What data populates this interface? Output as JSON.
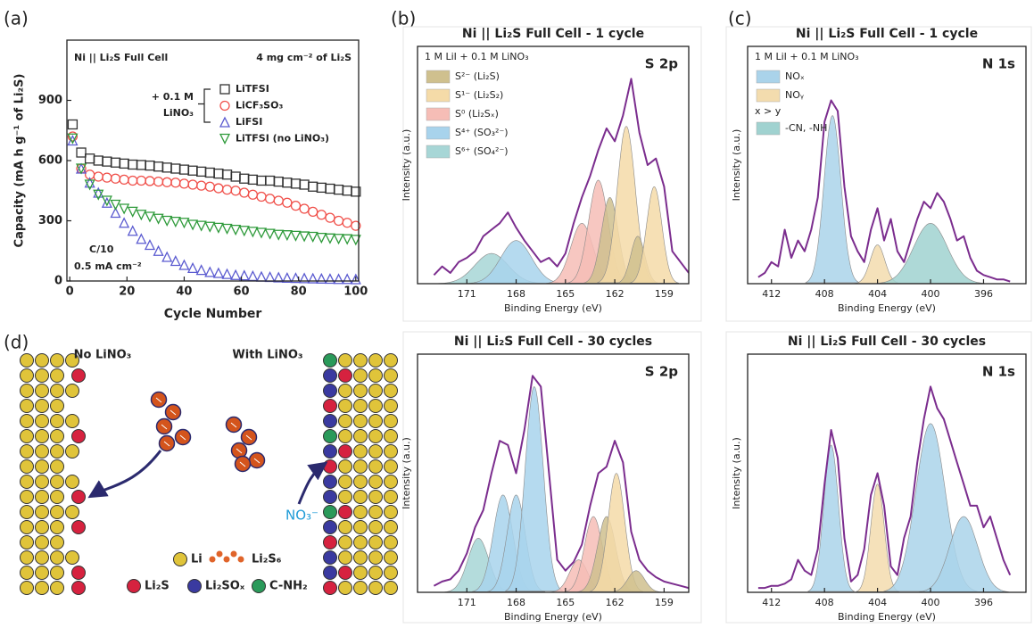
{
  "panel_labels": [
    "(a)",
    "(b)",
    "(c)",
    "(d)"
  ],
  "chart_data": [
    {
      "type": "scatter",
      "xlabel": "Cycle Number",
      "ylabel": "Capacity (mA h g⁻¹ of Li₂S)",
      "annotations": [
        "Ni || Li₂S Full Cell",
        "4 mg cm⁻² of Li₂S",
        "C/10",
        "0.5 mA cm⁻²"
      ],
      "legend_group": [
        "+ 0.1 M",
        "LiNO₃"
      ],
      "xlim": [
        -1,
        101
      ],
      "ylim": [
        0,
        1200
      ],
      "xticks": [
        0,
        20,
        40,
        60,
        80,
        100
      ],
      "yticks": [
        0,
        300,
        600,
        900
      ],
      "x": [
        1,
        4,
        7,
        10,
        13,
        16,
        19,
        22,
        25,
        28,
        31,
        34,
        37,
        40,
        43,
        46,
        49,
        52,
        55,
        58,
        61,
        64,
        67,
        70,
        73,
        76,
        79,
        82,
        85,
        88,
        91,
        94,
        97,
        100
      ],
      "series": [
        {
          "name": "LiTFSI",
          "color": "#333333",
          "marker": "square",
          "values": [
            780,
            640,
            610,
            600,
            595,
            590,
            585,
            580,
            578,
            575,
            570,
            565,
            560,
            555,
            550,
            545,
            540,
            535,
            530,
            520,
            510,
            505,
            500,
            500,
            495,
            490,
            485,
            480,
            470,
            465,
            460,
            455,
            450,
            445
          ]
        },
        {
          "name": "LiCF₃SO₃",
          "color": "#f0504a",
          "marker": "circle",
          "values": [
            720,
            560,
            530,
            520,
            515,
            510,
            505,
            500,
            500,
            498,
            495,
            492,
            490,
            485,
            480,
            475,
            470,
            462,
            455,
            450,
            440,
            430,
            420,
            410,
            400,
            390,
            375,
            360,
            345,
            330,
            315,
            300,
            290,
            275
          ]
        },
        {
          "name": "LiFSI",
          "color": "#5a5ad0",
          "marker": "triangle",
          "values": [
            700,
            560,
            490,
            440,
            390,
            340,
            290,
            250,
            210,
            180,
            150,
            120,
            100,
            80,
            65,
            55,
            45,
            40,
            35,
            30,
            28,
            25,
            22,
            20,
            18,
            16,
            15,
            14,
            13,
            12,
            11,
            10,
            10,
            9
          ]
        },
        {
          "name": "LiTFSI (no LiNO₃)",
          "color": "#2e9a3a",
          "marker": "triangle-down",
          "values": [
            710,
            560,
            480,
            430,
            400,
            380,
            360,
            345,
            330,
            320,
            310,
            300,
            295,
            290,
            280,
            275,
            270,
            265,
            260,
            255,
            250,
            245,
            240,
            235,
            230,
            228,
            225,
            222,
            220,
            215,
            212,
            210,
            208,
            205
          ]
        }
      ]
    },
    {
      "type": "spectrum",
      "title": "Ni || Li₂S Full Cell - 1 cycle",
      "subtitle": "1 M LiI + 0.1 M LiNO₃",
      "label": "S 2p",
      "xlabel": "Binding Energy (eV)",
      "ylabel": "Intensity (a.u.)",
      "xlim": [
        174,
        157.5
      ],
      "ylim": [
        0,
        110
      ],
      "xticks": [
        171,
        168,
        165,
        162,
        159
      ],
      "legend": [
        {
          "name": "S²⁻  (Li₂S)",
          "color": "#cfc08e"
        },
        {
          "name": "S¹⁻  (Li₂S₂)",
          "color": "#f5dba8"
        },
        {
          "name": "S⁰  (Li₂Sₓ)",
          "color": "#f6bdb6"
        },
        {
          "name": "S⁴⁺  (SO₃²⁻)",
          "color": "#a8d3ec"
        },
        {
          "name": "S⁶⁺  (SO₄²⁻)",
          "color": "#a7d6d6"
        }
      ],
      "components": [
        {
          "color": "#a7d6d6",
          "center": 169.5,
          "height": 14,
          "fwhm": 2.4
        },
        {
          "color": "#a8d3ec",
          "center": 168.0,
          "height": 20,
          "fwhm": 2.2
        },
        {
          "color": "#f6bdb6",
          "center": 164.0,
          "height": 28,
          "fwhm": 1.6
        },
        {
          "color": "#f6bdb6",
          "center": 163.0,
          "height": 48,
          "fwhm": 1.4
        },
        {
          "color": "#cfc08e",
          "center": 162.3,
          "height": 40,
          "fwhm": 1.2
        },
        {
          "color": "#f5dba8",
          "center": 161.3,
          "height": 73,
          "fwhm": 1.3
        },
        {
          "color": "#cfc08e",
          "center": 160.6,
          "height": 22,
          "fwhm": 1.0
        },
        {
          "color": "#f5dba8",
          "center": 159.6,
          "height": 45,
          "fwhm": 1.1
        }
      ],
      "envelope": {
        "color": "#7b2d8e",
        "x": [
          173,
          172.5,
          172,
          171.5,
          171,
          170.5,
          170,
          169.5,
          169,
          168.5,
          168,
          167.5,
          167,
          166.5,
          166,
          165.5,
          165,
          164.5,
          164,
          163.5,
          163,
          162.5,
          162,
          161.5,
          161,
          160.5,
          160,
          159.5,
          159,
          158.5,
          158,
          157.5
        ],
        "values": [
          4,
          8,
          5,
          10,
          12,
          15,
          22,
          25,
          28,
          33,
          26,
          20,
          15,
          10,
          12,
          8,
          14,
          28,
          40,
          50,
          62,
          72,
          66,
          78,
          95,
          70,
          55,
          58,
          45,
          15,
          10,
          5
        ]
      }
    },
    {
      "type": "spectrum",
      "title": "Ni || Li₂S Full Cell - 30 cycles",
      "label": "S 2p",
      "xlabel": "Binding Energy (eV)",
      "ylabel": "Intensity (a.u.)",
      "xlim": [
        174,
        157.5
      ],
      "ylim": [
        0,
        110
      ],
      "xticks": [
        171,
        168,
        165,
        162,
        159
      ],
      "components": [
        {
          "color": "#a7d6d6",
          "center": 170.3,
          "height": 25,
          "fwhm": 1.5
        },
        {
          "color": "#a8d3ec",
          "center": 168.8,
          "height": 45,
          "fwhm": 1.4
        },
        {
          "color": "#a8d3ec",
          "center": 168.0,
          "height": 45,
          "fwhm": 1.3
        },
        {
          "color": "#a8d3ec",
          "center": 166.9,
          "height": 95,
          "fwhm": 1.3
        },
        {
          "color": "#f6bdb6",
          "center": 164.2,
          "height": 15,
          "fwhm": 1.3
        },
        {
          "color": "#f6bdb6",
          "center": 163.3,
          "height": 35,
          "fwhm": 1.3
        },
        {
          "color": "#cfc08e",
          "center": 162.5,
          "height": 35,
          "fwhm": 1.3
        },
        {
          "color": "#f5dba8",
          "center": 161.9,
          "height": 55,
          "fwhm": 1.2
        },
        {
          "color": "#cfc08e",
          "center": 160.7,
          "height": 10,
          "fwhm": 1.2
        }
      ],
      "envelope": {
        "color": "#7b2d8e",
        "x": [
          173,
          172.5,
          172,
          171.5,
          171,
          170.5,
          170,
          169.5,
          169,
          168.5,
          168,
          167.5,
          167,
          166.5,
          166,
          165.5,
          165,
          164.5,
          164,
          163.5,
          163,
          162.5,
          162,
          161.5,
          161,
          160.5,
          160,
          159.5,
          159,
          158.5,
          158,
          157.5
        ],
        "values": [
          3,
          5,
          6,
          10,
          18,
          30,
          38,
          55,
          70,
          68,
          55,
          75,
          100,
          95,
          55,
          15,
          10,
          14,
          22,
          40,
          55,
          58,
          70,
          60,
          28,
          15,
          10,
          7,
          5,
          4,
          3,
          2
        ]
      }
    },
    {
      "type": "spectrum",
      "title": "Ni || Li₂S Full Cell - 1 cycle",
      "subtitle": "1 M LiI + 0.1 M LiNO₃",
      "label": "N 1s",
      "xlabel": "Binding Energy (eV)",
      "ylabel": "Intensity (a.u.)",
      "xlim": [
        413.8,
        392.8
      ],
      "ylim": [
        0,
        110
      ],
      "xticks": [
        412,
        408,
        404,
        400,
        396
      ],
      "legend": [
        {
          "name": "NOₓ",
          "color": "#aad3ea"
        },
        {
          "name": "NOᵧ",
          "color": "#f3dcae"
        },
        {
          "name": "-CN, -NH",
          "color": "#a0d2d0"
        }
      ],
      "legend_note": "x > y",
      "components": [
        {
          "color": "#aad3ea",
          "center": 407.4,
          "height": 78,
          "fwhm": 1.5
        },
        {
          "color": "#f3dcae",
          "center": 404.0,
          "height": 18,
          "fwhm": 1.3
        },
        {
          "color": "#a0d2d0",
          "center": 400.0,
          "height": 28,
          "fwhm": 3.0
        }
      ],
      "envelope": {
        "color": "#7b2d8e",
        "x": [
          413,
          412.5,
          412,
          411.5,
          411,
          410.5,
          410,
          409.5,
          409,
          408.5,
          408,
          407.5,
          407,
          406.5,
          406,
          405.5,
          405,
          404.5,
          404,
          403.5,
          403,
          402.5,
          402,
          401.5,
          401,
          400.5,
          400,
          399.5,
          399,
          398.5,
          398,
          397.5,
          397,
          396.5,
          396,
          395.5,
          395,
          394.5,
          394
        ],
        "values": [
          3,
          5,
          10,
          8,
          25,
          12,
          20,
          15,
          25,
          40,
          75,
          85,
          80,
          45,
          22,
          15,
          10,
          25,
          35,
          20,
          30,
          15,
          10,
          20,
          30,
          38,
          35,
          42,
          38,
          30,
          20,
          22,
          12,
          6,
          4,
          3,
          2,
          2,
          1
        ]
      }
    },
    {
      "type": "spectrum",
      "title": "Ni || Li₂S Full Cell - 30 cycles",
      "label": "N 1s",
      "xlabel": "Binding Energy (eV)",
      "ylabel": "Intensity (a.u.)",
      "xlim": [
        413.8,
        392.8
      ],
      "ylim": [
        0,
        110
      ],
      "xticks": [
        412,
        408,
        404,
        400,
        396
      ],
      "components": [
        {
          "color": "#aad3ea",
          "center": 407.5,
          "height": 68,
          "fwhm": 1.3
        },
        {
          "color": "#f3dcae",
          "center": 404.0,
          "height": 50,
          "fwhm": 1.2
        },
        {
          "color": "#aad3ea",
          "center": 400.0,
          "height": 78,
          "fwhm": 2.6
        },
        {
          "color": "#aad3ea",
          "center": 397.5,
          "height": 35,
          "fwhm": 2.5
        }
      ],
      "envelope": {
        "color": "#7b2d8e",
        "x": [
          413,
          412.5,
          412,
          411.5,
          411,
          410.5,
          410,
          409.5,
          409,
          408.5,
          408,
          407.5,
          407,
          406.5,
          406,
          405.5,
          405,
          404.5,
          404,
          403.5,
          403,
          402.5,
          402,
          401.5,
          401,
          400.5,
          400,
          399.5,
          399,
          398.5,
          398,
          397.5,
          397,
          396.5,
          396,
          395.5,
          395,
          394.5,
          394
        ],
        "values": [
          2,
          2,
          3,
          3,
          4,
          6,
          15,
          10,
          8,
          20,
          50,
          75,
          62,
          25,
          5,
          8,
          20,
          45,
          55,
          40,
          12,
          8,
          25,
          35,
          60,
          80,
          95,
          85,
          80,
          70,
          60,
          50,
          40,
          40,
          30,
          35,
          25,
          15,
          8
        ]
      }
    }
  ],
  "diagram": {
    "left_title": "No LiNO₃",
    "right_title": "With LiNO₃",
    "anion": "NO₃⁻",
    "legend": [
      "Li",
      "Li₂S₆",
      "Li₂S",
      "Li₂SOₓ",
      "C-NH₂"
    ]
  }
}
